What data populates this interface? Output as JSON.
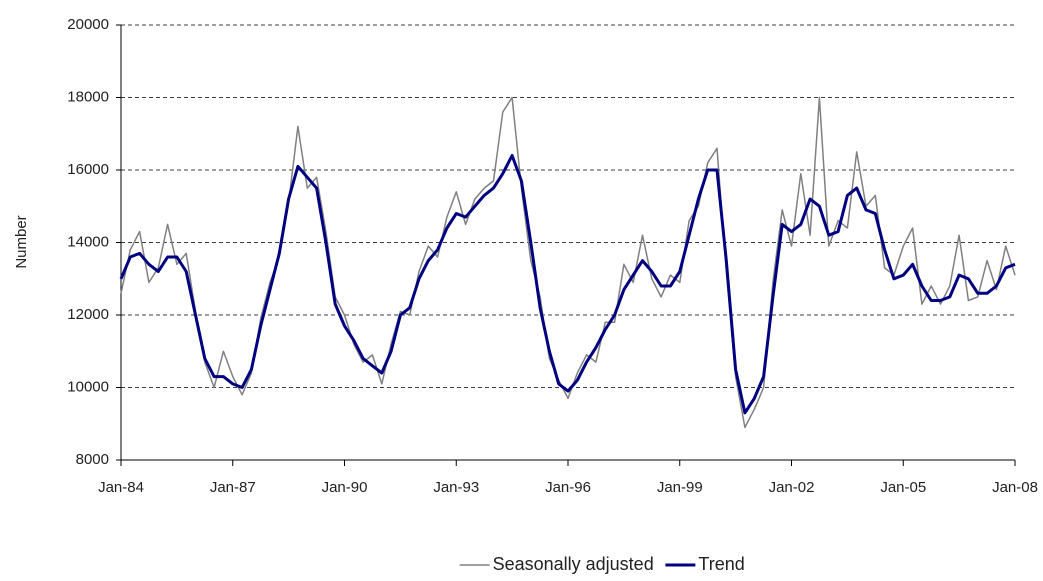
{
  "chart_data": {
    "type": "line",
    "y_label": "Number",
    "x": [
      1984,
      1984.25,
      1984.5,
      1984.75,
      1985,
      1985.25,
      1985.5,
      1985.75,
      1986,
      1986.25,
      1986.5,
      1986.75,
      1987,
      1987.25,
      1987.5,
      1987.75,
      1988,
      1988.25,
      1988.5,
      1988.75,
      1989,
      1989.25,
      1989.5,
      1989.75,
      1990,
      1990.25,
      1990.5,
      1990.75,
      1991,
      1991.25,
      1991.5,
      1991.75,
      1992,
      1992.25,
      1992.5,
      1992.75,
      1993,
      1993.25,
      1993.5,
      1993.75,
      1994,
      1994.25,
      1994.5,
      1994.75,
      1995,
      1995.25,
      1995.5,
      1995.75,
      1996,
      1996.25,
      1996.5,
      1996.75,
      1997,
      1997.25,
      1997.5,
      1997.75,
      1998,
      1998.25,
      1998.5,
      1998.75,
      1999,
      1999.25,
      1999.5,
      1999.75,
      2000,
      2000.25,
      2000.5,
      2000.75,
      2001,
      2001.25,
      2001.5,
      2001.75,
      2002,
      2002.25,
      2002.5,
      2002.75,
      2003,
      2003.25,
      2003.5,
      2003.75,
      2004,
      2004.25,
      2004.5,
      2004.75,
      2005,
      2005.25,
      2005.5,
      2005.75,
      2006,
      2006.25,
      2006.5,
      2006.75,
      2007,
      2007.25,
      2007.5,
      2007.75,
      2008
    ],
    "series": [
      {
        "name": "Seasonally adjusted",
        "color": "#808080",
        "width": 1.5,
        "values": [
          12600,
          13800,
          14300,
          12900,
          13300,
          14500,
          13400,
          13700,
          12100,
          10700,
          10000,
          11000,
          10300,
          9800,
          10400,
          11900,
          12900,
          13600,
          15100,
          17200,
          15500,
          15800,
          14300,
          12500,
          12000,
          11200,
          10700,
          10900,
          10100,
          11200,
          12100,
          12000,
          13200,
          13900,
          13600,
          14700,
          15400,
          14500,
          15200,
          15500,
          15700,
          17600,
          18000,
          15500,
          13500,
          12500,
          10800,
          10200,
          9700,
          10400,
          10900,
          10700,
          11800,
          11800,
          13400,
          12900,
          14200,
          13000,
          12500,
          13100,
          12900,
          14600,
          15000,
          16200,
          16600,
          13200,
          10300,
          8900,
          9400,
          10000,
          12900,
          14900,
          13900,
          15900,
          14200,
          18000,
          13900,
          14600,
          14400,
          16500,
          15000,
          15300,
          13300,
          13100,
          13900,
          14400,
          12300,
          12800,
          12300,
          12800,
          14200,
          12400,
          12500,
          13500,
          12700,
          13900,
          13100
        ]
      },
      {
        "name": "Trend",
        "color": "#000080",
        "width": 3,
        "values": [
          13000,
          13600,
          13700,
          13400,
          13200,
          13600,
          13600,
          13200,
          12000,
          10800,
          10300,
          10300,
          10100,
          10000,
          10500,
          11700,
          12700,
          13700,
          15200,
          16100,
          15800,
          15500,
          14000,
          12300,
          11700,
          11300,
          10800,
          10600,
          10400,
          11000,
          12000,
          12200,
          13000,
          13500,
          13800,
          14400,
          14800,
          14700,
          15000,
          15300,
          15500,
          15900,
          16400,
          15700,
          14000,
          12200,
          11000,
          10100,
          9900,
          10200,
          10700,
          11100,
          11600,
          12000,
          12700,
          13100,
          13500,
          13200,
          12800,
          12800,
          13200,
          14200,
          15200,
          16000,
          16000,
          13500,
          10500,
          9300,
          9700,
          10300,
          12500,
          14500,
          14300,
          14500,
          15200,
          15000,
          14200,
          14300,
          15300,
          15500,
          14900,
          14800,
          13800,
          13000,
          13100,
          13400,
          12800,
          12400,
          12400,
          12500,
          13100,
          13000,
          12600,
          12600,
          12800,
          13300,
          13400
        ]
      }
    ],
    "xlim": [
      1984,
      2008
    ],
    "xticks": [
      {
        "value": 1984,
        "label": "Jan-84"
      },
      {
        "value": 1987,
        "label": "Jan-87"
      },
      {
        "value": 1990,
        "label": "Jan-90"
      },
      {
        "value": 1993,
        "label": "Jan-93"
      },
      {
        "value": 1996,
        "label": "Jan-96"
      },
      {
        "value": 1999,
        "label": "Jan-99"
      },
      {
        "value": 2002,
        "label": "Jan-02"
      },
      {
        "value": 2005,
        "label": "Jan-05"
      },
      {
        "value": 2008,
        "label": "Jan-08"
      }
    ],
    "ylim": [
      8000,
      20000
    ],
    "yticks": [
      8000,
      10000,
      12000,
      14000,
      16000,
      18000,
      20000
    ],
    "grid": true,
    "legend": "bottom"
  }
}
